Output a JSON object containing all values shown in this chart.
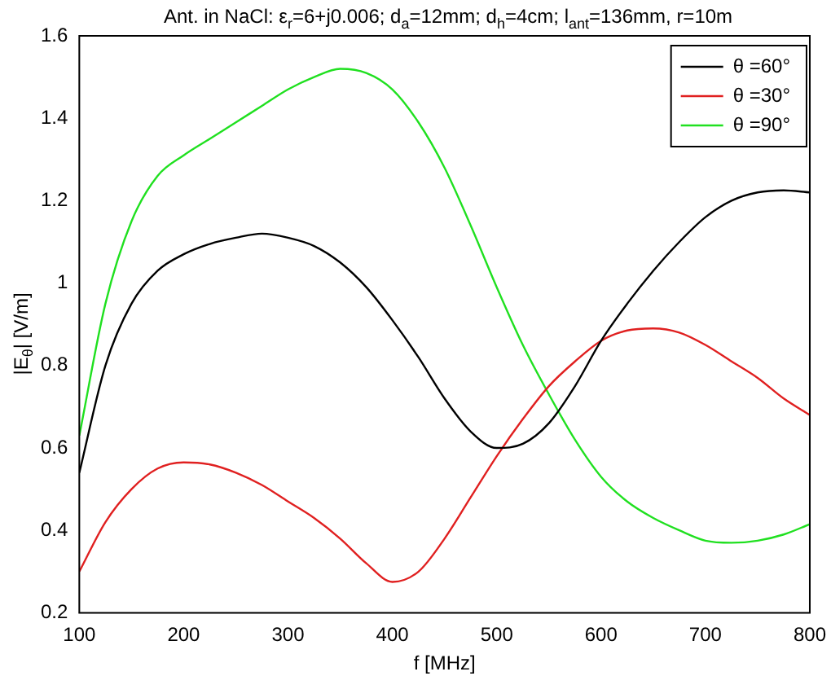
{
  "chart_data": {
    "type": "line",
    "title": "Ant. in NaCl: ε$_{r}$=6+j0.006; d$_{a}$=12mm; d$_{h}$=4cm; l$_{ant}$=136mm, r=10m",
    "xlabel": "f [MHz]",
    "ylabel": "|E$_{θ}$| [V/m]",
    "x": [
      100,
      125,
      150,
      175,
      200,
      225,
      250,
      275,
      300,
      325,
      350,
      375,
      400,
      425,
      450,
      475,
      500,
      525,
      550,
      575,
      600,
      625,
      650,
      675,
      700,
      725,
      750,
      775,
      800
    ],
    "series": [
      {
        "name": "θ =60°",
        "color": "#000000",
        "values": [
          0.54,
          0.8,
          0.95,
          1.03,
          1.07,
          1.095,
          1.11,
          1.12,
          1.11,
          1.09,
          1.05,
          0.99,
          0.91,
          0.82,
          0.72,
          0.64,
          0.6,
          0.61,
          0.66,
          0.75,
          0.86,
          0.95,
          1.03,
          1.1,
          1.16,
          1.2,
          1.22,
          1.225,
          1.22
        ]
      },
      {
        "name": "θ =30°",
        "color": "#e02020",
        "values": [
          0.3,
          0.42,
          0.5,
          0.55,
          0.565,
          0.56,
          0.54,
          0.51,
          0.47,
          0.43,
          0.38,
          0.32,
          0.275,
          0.3,
          0.38,
          0.48,
          0.58,
          0.67,
          0.75,
          0.81,
          0.86,
          0.885,
          0.89,
          0.88,
          0.85,
          0.81,
          0.77,
          0.72,
          0.68
        ]
      },
      {
        "name": "θ =90°",
        "color": "#20e020",
        "values": [
          0.63,
          0.95,
          1.15,
          1.26,
          1.31,
          1.35,
          1.39,
          1.43,
          1.47,
          1.5,
          1.52,
          1.51,
          1.47,
          1.39,
          1.28,
          1.14,
          0.99,
          0.85,
          0.73,
          0.62,
          0.53,
          0.47,
          0.43,
          0.4,
          0.375,
          0.37,
          0.375,
          0.39,
          0.415
        ]
      }
    ],
    "xlim": [
      100,
      800
    ],
    "xticks": [
      100,
      200,
      300,
      400,
      500,
      600,
      700,
      800
    ],
    "ylim": [
      0.2,
      1.6
    ],
    "yticks": [
      0.2,
      0.4,
      0.6,
      0.8,
      1,
      1.2,
      1.4,
      1.6
    ],
    "grid": false,
    "legend": "top right",
    "marker": "none",
    "line_style": "solid"
  }
}
